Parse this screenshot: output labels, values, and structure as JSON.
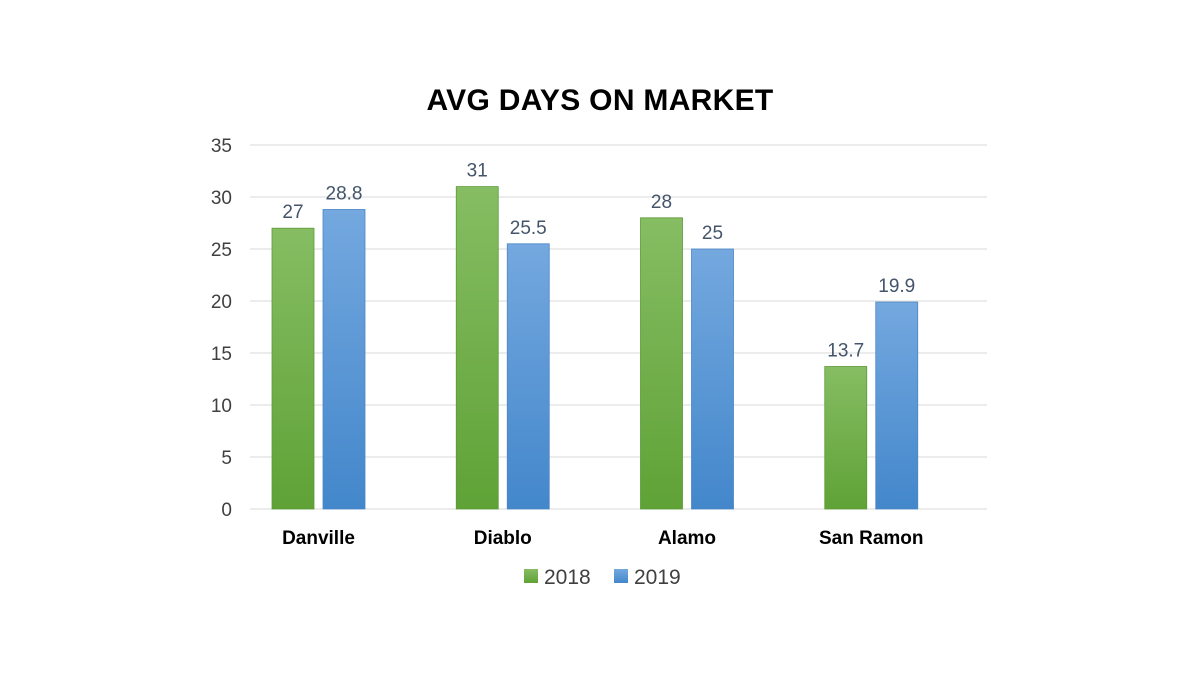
{
  "chart_data": {
    "type": "bar",
    "title": "AVG DAYS ON MARKET",
    "categories": [
      "Danville",
      "Diablo",
      "Alamo",
      "San Ramon"
    ],
    "series": [
      {
        "name": "2018",
        "values": [
          27,
          31,
          28,
          13.7
        ],
        "color": "#70ad47"
      },
      {
        "name": "2019",
        "values": [
          28.8,
          25.5,
          25,
          19.9
        ],
        "color": "#5b9bd5"
      }
    ],
    "data_labels": [
      [
        "27",
        "31",
        "28",
        "13.7"
      ],
      [
        "28.8",
        "25.5",
        "25",
        "19.9"
      ]
    ],
    "ylim": [
      0,
      35
    ],
    "yticks": [
      0,
      5,
      10,
      15,
      20,
      25,
      30,
      35
    ],
    "ytick_labels": [
      "0",
      "5",
      "10",
      "15",
      "20",
      "25",
      "30",
      "35"
    ],
    "grid": true,
    "legend_position": "bottom"
  }
}
